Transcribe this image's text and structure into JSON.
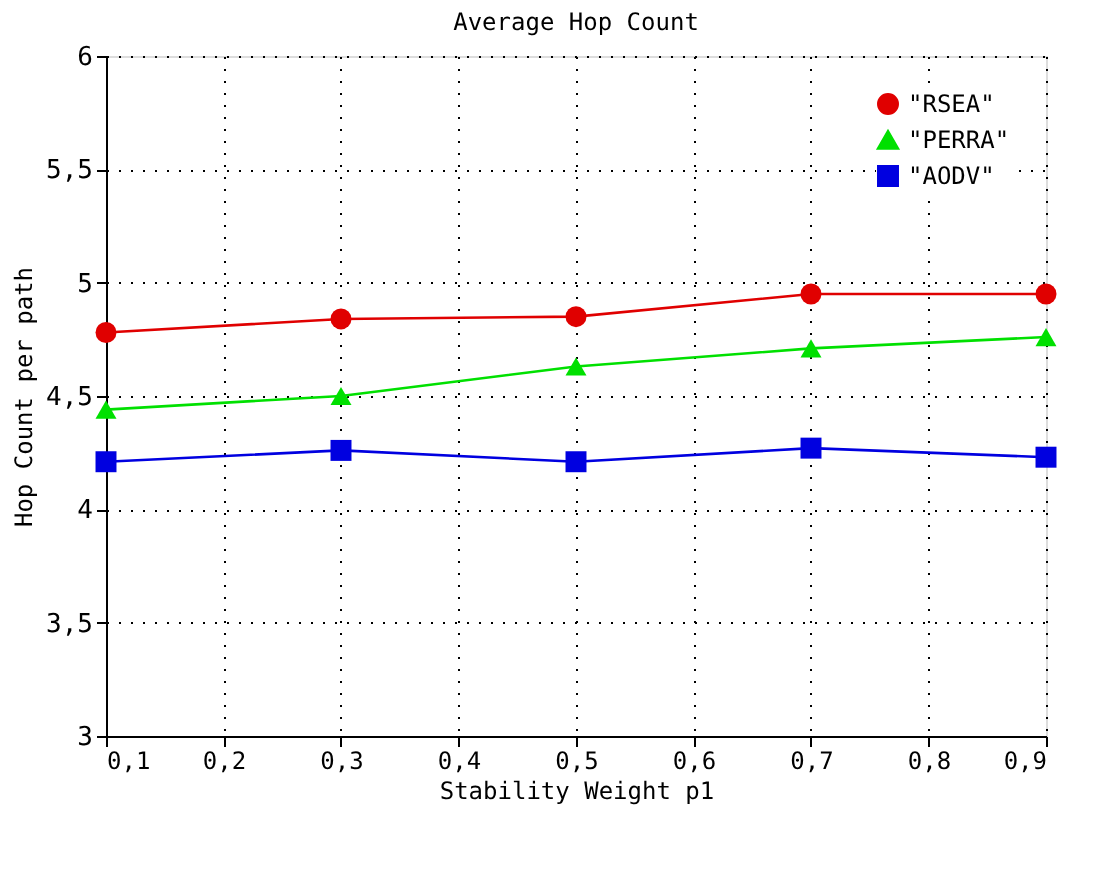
{
  "chart_data": {
    "type": "line",
    "title": "Average Hop Count",
    "xlabel": "Stability Weight p1",
    "ylabel": "Hop Count per path",
    "x": [
      0.1,
      0.3,
      0.5,
      0.7,
      0.9
    ],
    "series": [
      {
        "name": "\"RSEA\"",
        "color": "#e00000",
        "marker": "circle",
        "values": [
          4.78,
          4.84,
          4.85,
          4.95,
          4.95
        ]
      },
      {
        "name": "\"PERRA\"",
        "color": "#00e000",
        "marker": "triangle",
        "values": [
          4.44,
          4.5,
          4.63,
          4.71,
          4.76
        ]
      },
      {
        "name": "\"AODV\"",
        "color": "#0000e0",
        "marker": "square",
        "values": [
          4.21,
          4.26,
          4.21,
          4.27,
          4.23
        ]
      }
    ],
    "xlim": [
      0.1,
      0.9
    ],
    "xticks": [
      {
        "value": 0.1,
        "label": "0,1"
      },
      {
        "value": 0.2,
        "label": "0,2"
      },
      {
        "value": 0.3,
        "label": "0,3"
      },
      {
        "value": 0.4,
        "label": "0,4"
      },
      {
        "value": 0.5,
        "label": "0,5"
      },
      {
        "value": 0.6,
        "label": "0,6"
      },
      {
        "value": 0.7,
        "label": "0,7"
      },
      {
        "value": 0.8,
        "label": "0,8"
      },
      {
        "value": 0.9,
        "label": "0,9"
      }
    ],
    "ylim": [
      3,
      6
    ],
    "yticks": [
      3,
      {
        "value": 3.5,
        "label": "3,5"
      },
      4,
      {
        "value": 4.5,
        "label": "4,5"
      },
      5,
      {
        "value": 5.5,
        "label": "5,5"
      },
      6
    ],
    "grid": true,
    "legend": "top right",
    "line_style": "solid"
  }
}
